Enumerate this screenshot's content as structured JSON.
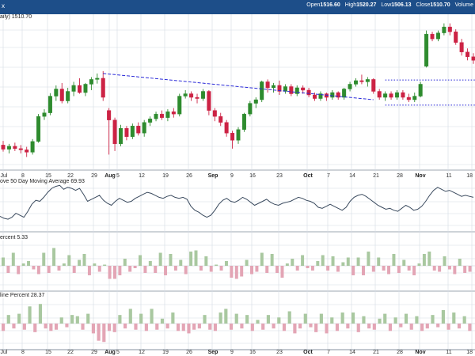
{
  "header": {
    "ticker_mark": "x",
    "open_label": "Open",
    "open_value": "1516.60",
    "high_label": "High",
    "high_value": "1520.27",
    "low_label": "Low",
    "low_value": "1506.13",
    "close_label": "Close",
    "close_value": "1510.70",
    "volume_label": "Volume"
  },
  "colors": {
    "up": "#2e8b2e",
    "down": "#cc2244",
    "trend": "#2b2bd8",
    "grid": "#d4dbe3",
    "line": "#3a4a5e",
    "bar_up": "#a9c8a0",
    "bar_down": "#e3a5b5",
    "header_bg": "#1d4e89"
  },
  "chart_data": [
    {
      "type": "candlestick",
      "title": "aily) 1510.70",
      "x_tick_labels": [
        "Jul",
        "8",
        "15",
        "22",
        "29",
        "Aug",
        "5",
        "12",
        "19",
        "26",
        "Sep",
        "9",
        "16",
        "23",
        "Oct",
        "7",
        "14",
        "21",
        "28",
        "Nov",
        "11",
        "18"
      ],
      "bold_ticks": [
        "Aug",
        "Sep",
        "Oct",
        "Nov"
      ],
      "candles": [
        {
          "o": 1338,
          "h": 1345,
          "l": 1327,
          "c": 1331
        },
        {
          "o": 1331,
          "h": 1340,
          "l": 1324,
          "c": 1336
        },
        {
          "o": 1336,
          "h": 1342,
          "l": 1328,
          "c": 1332
        },
        {
          "o": 1332,
          "h": 1338,
          "l": 1324,
          "c": 1330
        },
        {
          "o": 1330,
          "h": 1335,
          "l": 1318,
          "c": 1326
        },
        {
          "o": 1326,
          "h": 1348,
          "l": 1322,
          "c": 1344
        },
        {
          "o": 1344,
          "h": 1390,
          "l": 1342,
          "c": 1386
        },
        {
          "o": 1386,
          "h": 1398,
          "l": 1380,
          "c": 1392
        },
        {
          "o": 1392,
          "h": 1425,
          "l": 1388,
          "c": 1420
        },
        {
          "o": 1420,
          "h": 1438,
          "l": 1412,
          "c": 1432
        },
        {
          "o": 1432,
          "h": 1442,
          "l": 1408,
          "c": 1412
        },
        {
          "o": 1412,
          "h": 1434,
          "l": 1408,
          "c": 1428
        },
        {
          "o": 1428,
          "h": 1444,
          "l": 1420,
          "c": 1438
        },
        {
          "o": 1438,
          "h": 1450,
          "l": 1424,
          "c": 1426
        },
        {
          "o": 1426,
          "h": 1442,
          "l": 1420,
          "c": 1440
        },
        {
          "o": 1440,
          "h": 1452,
          "l": 1430,
          "c": 1448
        },
        {
          "o": 1448,
          "h": 1458,
          "l": 1441,
          "c": 1450
        },
        {
          "o": 1450,
          "h": 1462,
          "l": 1412,
          "c": 1418
        },
        {
          "o": 1396,
          "h": 1400,
          "l": 1322,
          "c": 1380
        },
        {
          "o": 1380,
          "h": 1384,
          "l": 1328,
          "c": 1340
        },
        {
          "o": 1340,
          "h": 1372,
          "l": 1336,
          "c": 1366
        },
        {
          "o": 1366,
          "h": 1370,
          "l": 1346,
          "c": 1352
        },
        {
          "o": 1352,
          "h": 1374,
          "l": 1348,
          "c": 1370
        },
        {
          "o": 1370,
          "h": 1376,
          "l": 1354,
          "c": 1358
        },
        {
          "o": 1358,
          "h": 1380,
          "l": 1352,
          "c": 1376
        },
        {
          "o": 1376,
          "h": 1386,
          "l": 1370,
          "c": 1382
        },
        {
          "o": 1382,
          "h": 1394,
          "l": 1378,
          "c": 1390
        },
        {
          "o": 1390,
          "h": 1396,
          "l": 1380,
          "c": 1384
        },
        {
          "o": 1384,
          "h": 1398,
          "l": 1378,
          "c": 1394
        },
        {
          "o": 1394,
          "h": 1400,
          "l": 1384,
          "c": 1390
        },
        {
          "o": 1390,
          "h": 1424,
          "l": 1386,
          "c": 1420
        },
        {
          "o": 1420,
          "h": 1430,
          "l": 1416,
          "c": 1424
        },
        {
          "o": 1424,
          "h": 1428,
          "l": 1412,
          "c": 1418
        },
        {
          "o": 1418,
          "h": 1424,
          "l": 1408,
          "c": 1416
        },
        {
          "o": 1416,
          "h": 1432,
          "l": 1412,
          "c": 1428
        },
        {
          "o": 1428,
          "h": 1430,
          "l": 1388,
          "c": 1396
        },
        {
          "o": 1396,
          "h": 1400,
          "l": 1378,
          "c": 1386
        },
        {
          "o": 1386,
          "h": 1392,
          "l": 1370,
          "c": 1376
        },
        {
          "o": 1376,
          "h": 1380,
          "l": 1352,
          "c": 1358
        },
        {
          "o": 1358,
          "h": 1362,
          "l": 1332,
          "c": 1346
        },
        {
          "o": 1346,
          "h": 1368,
          "l": 1340,
          "c": 1364
        },
        {
          "o": 1364,
          "h": 1392,
          "l": 1360,
          "c": 1390
        },
        {
          "o": 1390,
          "h": 1412,
          "l": 1386,
          "c": 1408
        },
        {
          "o": 1408,
          "h": 1418,
          "l": 1400,
          "c": 1414
        },
        {
          "o": 1414,
          "h": 1446,
          "l": 1410,
          "c": 1444
        },
        {
          "o": 1444,
          "h": 1448,
          "l": 1426,
          "c": 1434
        },
        {
          "o": 1434,
          "h": 1442,
          "l": 1426,
          "c": 1438
        },
        {
          "o": 1438,
          "h": 1446,
          "l": 1422,
          "c": 1428
        },
        {
          "o": 1428,
          "h": 1440,
          "l": 1424,
          "c": 1436
        },
        {
          "o": 1436,
          "h": 1440,
          "l": 1420,
          "c": 1424
        },
        {
          "o": 1424,
          "h": 1438,
          "l": 1420,
          "c": 1434
        },
        {
          "o": 1434,
          "h": 1438,
          "l": 1424,
          "c": 1430
        },
        {
          "o": 1430,
          "h": 1434,
          "l": 1418,
          "c": 1422
        },
        {
          "o": 1422,
          "h": 1426,
          "l": 1412,
          "c": 1416
        },
        {
          "o": 1416,
          "h": 1428,
          "l": 1412,
          "c": 1424
        },
        {
          "o": 1424,
          "h": 1426,
          "l": 1412,
          "c": 1418
        },
        {
          "o": 1418,
          "h": 1430,
          "l": 1414,
          "c": 1426
        },
        {
          "o": 1426,
          "h": 1428,
          "l": 1414,
          "c": 1418
        },
        {
          "o": 1418,
          "h": 1434,
          "l": 1414,
          "c": 1432
        },
        {
          "o": 1432,
          "h": 1444,
          "l": 1428,
          "c": 1440
        },
        {
          "o": 1440,
          "h": 1450,
          "l": 1436,
          "c": 1446
        },
        {
          "o": 1446,
          "h": 1456,
          "l": 1440,
          "c": 1444
        },
        {
          "o": 1444,
          "h": 1452,
          "l": 1436,
          "c": 1448
        },
        {
          "o": 1448,
          "h": 1450,
          "l": 1424,
          "c": 1428
        },
        {
          "o": 1428,
          "h": 1432,
          "l": 1414,
          "c": 1418
        },
        {
          "o": 1418,
          "h": 1428,
          "l": 1412,
          "c": 1424
        },
        {
          "o": 1424,
          "h": 1428,
          "l": 1414,
          "c": 1418
        },
        {
          "o": 1418,
          "h": 1430,
          "l": 1414,
          "c": 1426
        },
        {
          "o": 1426,
          "h": 1430,
          "l": 1414,
          "c": 1418
        },
        {
          "o": 1418,
          "h": 1424,
          "l": 1410,
          "c": 1414
        },
        {
          "o": 1414,
          "h": 1426,
          "l": 1410,
          "c": 1420
        },
        {
          "o": 1420,
          "h": 1444,
          "l": 1418,
          "c": 1440
        },
        {
          "o": 1470,
          "h": 1530,
          "l": 1468,
          "c": 1524
        },
        {
          "o": 1524,
          "h": 1528,
          "l": 1512,
          "c": 1516
        },
        {
          "o": 1516,
          "h": 1530,
          "l": 1512,
          "c": 1526
        },
        {
          "o": 1526,
          "h": 1542,
          "l": 1522,
          "c": 1536
        },
        {
          "o": 1536,
          "h": 1542,
          "l": 1522,
          "c": 1528
        },
        {
          "o": 1528,
          "h": 1532,
          "l": 1506,
          "c": 1510
        },
        {
          "o": 1510,
          "h": 1516,
          "l": 1488,
          "c": 1494
        },
        {
          "o": 1494,
          "h": 1500,
          "l": 1480,
          "c": 1486
        },
        {
          "o": 1486,
          "h": 1492,
          "l": 1474,
          "c": 1480
        }
      ],
      "trendlines": [
        {
          "style": "dashed",
          "points": [
            [
              17,
              1458
            ],
            [
              63,
              1414
            ]
          ]
        },
        {
          "style": "dotted",
          "points": [
            [
              65,
              1447
            ],
            [
              110,
              1447
            ]
          ]
        },
        {
          "style": "dotted",
          "points": [
            [
              65,
              1405
            ],
            [
              99,
              1405
            ]
          ]
        }
      ],
      "ylim": [
        1300,
        1552
      ]
    },
    {
      "type": "line",
      "title": "ove 50 Day Moving Average 69.93",
      "values": [
        28,
        24,
        22,
        26,
        34,
        30,
        26,
        38,
        52,
        60,
        58,
        66,
        76,
        84,
        88,
        90,
        82,
        86,
        84,
        80,
        84,
        72,
        58,
        62,
        66,
        70,
        60,
        54,
        50,
        58,
        64,
        60,
        56,
        58,
        64,
        68,
        72,
        76,
        74,
        70,
        66,
        64,
        68,
        70,
        66,
        64,
        66,
        62,
        48,
        40,
        36,
        30,
        26,
        30,
        40,
        52,
        60,
        64,
        58,
        56,
        60,
        66,
        62,
        56,
        50,
        54,
        58,
        62,
        56,
        52,
        50,
        54,
        56,
        58,
        62,
        66,
        64,
        60,
        58,
        54,
        46,
        44,
        48,
        52,
        48,
        44,
        40,
        46,
        58,
        66,
        70,
        72,
        68,
        62,
        56,
        50,
        46,
        42,
        44,
        40,
        38,
        44,
        50,
        46,
        40,
        42,
        48,
        58,
        70,
        80,
        86,
        82,
        78,
        80,
        76,
        72,
        68,
        70,
        68,
        66
      ],
      "ylim": [
        0,
        100
      ]
    },
    {
      "type": "bar",
      "title": "ercent 5.33",
      "values": [
        35,
        -30,
        55,
        -35,
        10,
        20,
        -15,
        -35,
        55,
        -30,
        75,
        -20,
        10,
        45,
        -30,
        25,
        50,
        -40,
        10,
        -25,
        5,
        -55,
        -55,
        -40,
        30,
        -25,
        -10,
        45,
        -30,
        20,
        -30,
        55,
        -40,
        50,
        -20,
        25,
        -35,
        60,
        65,
        -20,
        40,
        -25,
        5,
        -20,
        20,
        -50,
        -55,
        -45,
        25,
        -35,
        -25,
        55,
        -30,
        50,
        -30,
        -50,
        10,
        30,
        -20,
        45,
        -10,
        -20,
        20,
        45,
        -20,
        40,
        -25,
        15,
        35,
        -40,
        35,
        -40,
        60,
        -25,
        35,
        -20,
        -35,
        50,
        -30,
        25,
        -20,
        -40,
        10,
        50,
        60,
        -20,
        -25,
        40,
        -15,
        -35,
        30,
        -30,
        -25
      ],
      "ylim": [
        -100,
        100
      ]
    },
    {
      "type": "bar",
      "title": "line Percent 28.37",
      "values": [
        -30,
        35,
        -20,
        40,
        -25,
        70,
        -35,
        80,
        -20,
        -30,
        -25,
        25,
        -15,
        35,
        30,
        -25,
        40,
        -40,
        -70,
        -75,
        -30,
        -35,
        35,
        -20,
        60,
        -25,
        40,
        -30,
        60,
        -25,
        20,
        -20,
        45,
        -30,
        -30,
        -40,
        -25,
        -20,
        35,
        -25,
        -30,
        45,
        60,
        -25,
        40,
        -20,
        35,
        -30,
        15,
        -25,
        35,
        -20,
        25,
        -30,
        50,
        -40,
        -20,
        40,
        -15,
        -35,
        40,
        -40,
        25,
        -30,
        45,
        -20,
        45,
        -35,
        30,
        -20,
        -25,
        20,
        40,
        -30,
        25,
        -15,
        40,
        -25,
        30,
        -30,
        -20,
        35,
        -15,
        55,
        -25,
        45,
        -20,
        30,
        -30
      ],
      "ylim": [
        -100,
        100
      ]
    }
  ]
}
